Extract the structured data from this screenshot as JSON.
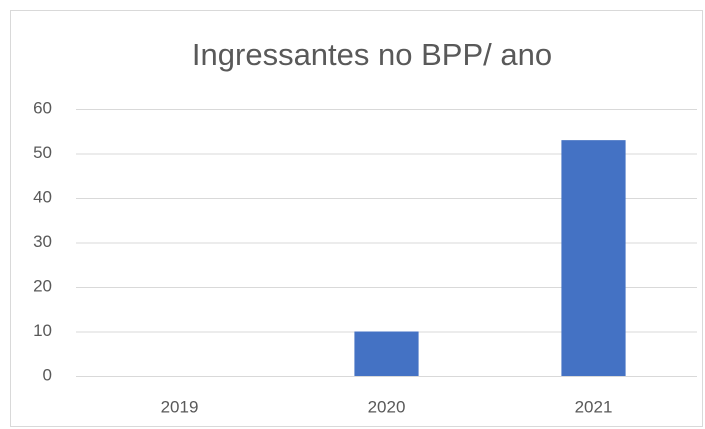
{
  "chart_data": {
    "type": "bar",
    "title": "Ingressantes no BPP/ ano",
    "categories": [
      "2019",
      "2020",
      "2021"
    ],
    "values": [
      0,
      10,
      53
    ],
    "color": "#4472c4",
    "ylim": [
      0,
      60
    ],
    "yticks": [
      0,
      10,
      20,
      30,
      40,
      50,
      60
    ],
    "grid": true
  }
}
